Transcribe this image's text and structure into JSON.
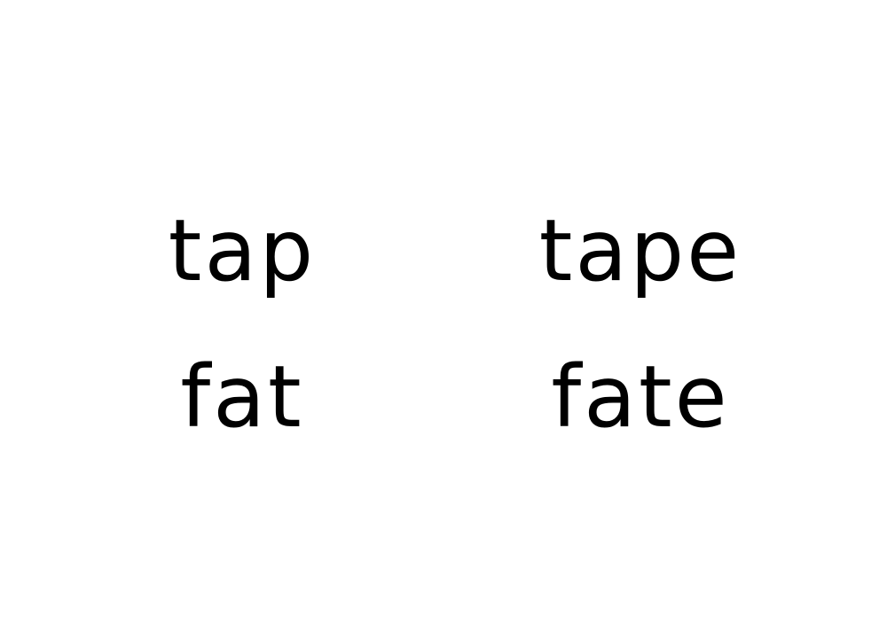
{
  "word_grid": {
    "rows": [
      {
        "short_word": "tap",
        "long_word": "tape"
      },
      {
        "short_word": "fat",
        "long_word": "fate"
      }
    ]
  },
  "colors": {
    "background": "#ffffff",
    "text": "#000000"
  }
}
